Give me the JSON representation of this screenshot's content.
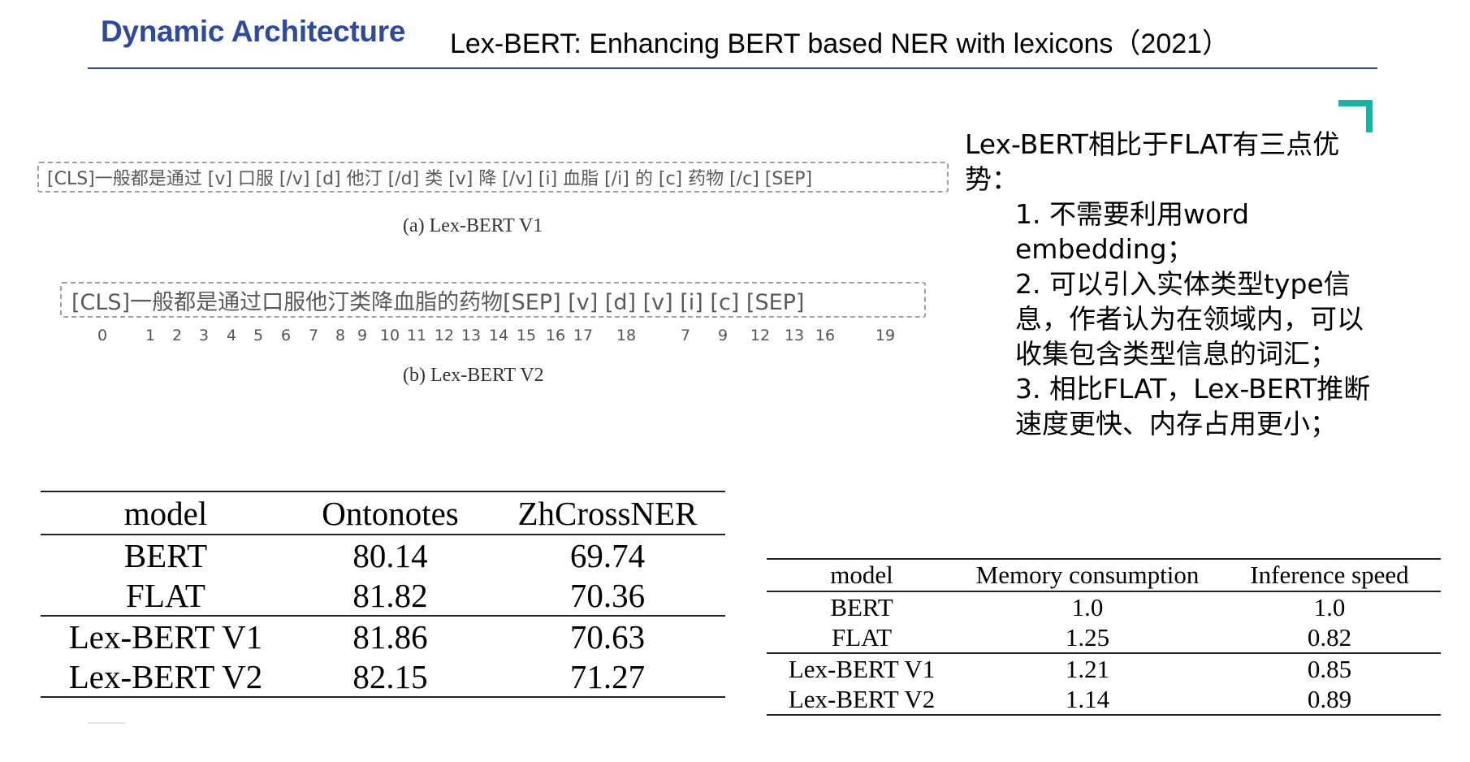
{
  "header": {
    "section_title": "Dynamic Architecture",
    "paper_title": "Lex-BERT: Enhancing BERT based NER with lexicons（2021）",
    "accent_color": "#2f4a9a",
    "corner_color": "#17b3a5"
  },
  "figure": {
    "seq_v1": "[CLS]一般都是通过 [v] 口服 [/v] [d] 他汀 [/d] 类 [v] 降 [/v] [i] 血脂 [/i] 的 [c] 药物 [/c] [SEP]",
    "caption_a": "(a) Lex-BERT V1",
    "seq_v2": "[CLS]一般都是通过口服他汀类降血脂的药物[SEP] [v] [d] [v] [i] [c] [SEP]",
    "position_ids": [
      "0",
      "1",
      "2",
      "3",
      "4",
      "5",
      "6",
      "7",
      "8",
      "9",
      "10",
      "11",
      "12",
      "13",
      "14",
      "15",
      "16",
      "17",
      "18",
      "7",
      "9",
      "12",
      "13",
      "16",
      "19"
    ],
    "caption_b": "(b) Lex-BERT V2"
  },
  "advantages": {
    "intro": "Lex-BERT相比于FLAT有三点优势：",
    "items": [
      "1. 不需要利用word embedding；",
      "2. 可以引入实体类型type信息，作者认为在领域内，可以收集包含类型信息的词汇；",
      "3. 相比FLAT，Lex-BERT推断速度更快、内存占用更小；"
    ]
  },
  "results_table": {
    "headers": [
      "model",
      "Ontonotes",
      "ZhCrossNER"
    ],
    "rows": [
      [
        "BERT",
        "80.14",
        "69.74"
      ],
      [
        "FLAT",
        "81.82",
        "70.36"
      ],
      [
        "Lex-BERT V1",
        "81.86",
        "70.63"
      ],
      [
        "Lex-BERT V2",
        "82.15",
        "71.27"
      ]
    ]
  },
  "efficiency_table": {
    "headers": [
      "model",
      "Memory consumption",
      "Inference speed"
    ],
    "rows": [
      [
        "BERT",
        "1.0",
        "1.0"
      ],
      [
        "FLAT",
        "1.25",
        "0.82"
      ],
      [
        "Lex-BERT V1",
        "1.21",
        "0.85"
      ],
      [
        "Lex-BERT V2",
        "1.14",
        "0.89"
      ]
    ]
  }
}
